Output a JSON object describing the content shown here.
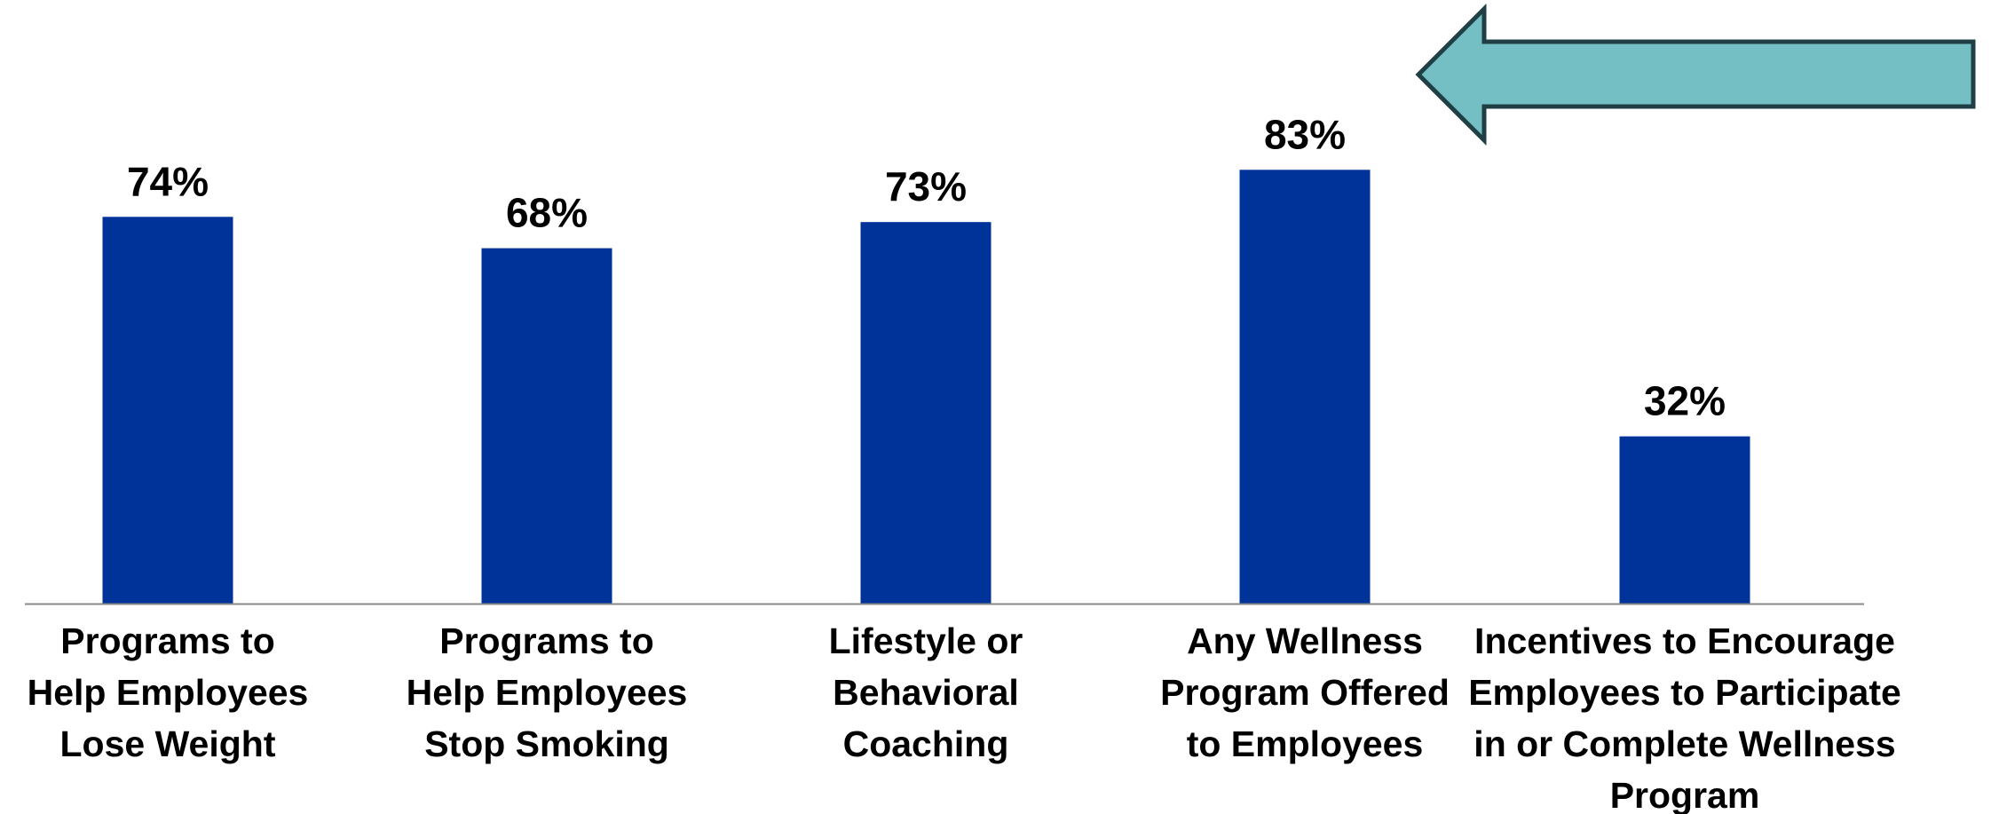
{
  "chart_data": {
    "type": "bar",
    "categories": [
      "Programs to Help Employees Lose Weight",
      "Programs to Help Employees Stop Smoking",
      "Lifestyle or Behavioral Coaching",
      "Any Wellness Program Offered to Employees",
      "Incentives to Encourage Employees to Participate in or Complete Wellness Program"
    ],
    "category_lines": [
      [
        "Programs to",
        "Help Employees",
        "Lose Weight"
      ],
      [
        "Programs to",
        "Help Employees",
        "Stop Smoking"
      ],
      [
        "Lifestyle or",
        "Behavioral",
        "Coaching"
      ],
      [
        "Any Wellness",
        "Program Offered",
        "to Employees"
      ],
      [
        "Incentives to Encourage",
        "Employees to Participate",
        "in or Complete Wellness",
        "Program"
      ]
    ],
    "values": [
      74,
      68,
      73,
      83,
      32
    ],
    "value_labels": [
      "74%",
      "68%",
      "73%",
      "83%",
      "32%"
    ],
    "ylim": [
      0,
      100
    ],
    "grid": false,
    "legend": "none",
    "highlight_index": 3,
    "colors": {
      "bar": "#003399",
      "arrow_fill": "#74BFC4",
      "arrow_stroke": "#1F3F44",
      "axis": "#888888"
    }
  }
}
